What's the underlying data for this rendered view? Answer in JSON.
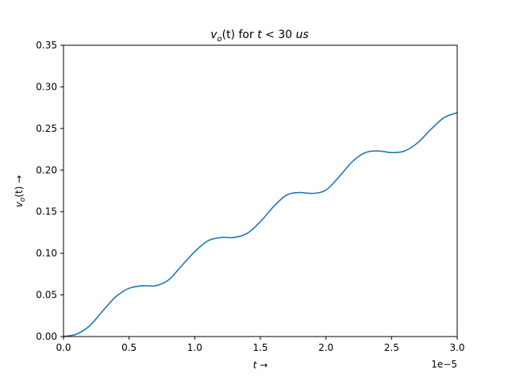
{
  "chart_data": {
    "type": "line",
    "title": "v_o(t) for t < 30 us",
    "title_parts": {
      "var": "v",
      "sub": "o",
      "arg": "(t)",
      "mid": " for ",
      "t": "t",
      "lt": " < 30 ",
      "unit": "us"
    },
    "xlabel": "t →",
    "xlabel_parts": {
      "var": "t",
      "arrow": " →"
    },
    "ylabel": "v_o(t) →",
    "ylabel_parts": {
      "var": "v",
      "sub": "o",
      "arg": "(t)",
      "arrow": " →"
    },
    "x_offset_text": "1e−5",
    "xlim": [
      0.0,
      3.0
    ],
    "ylim": [
      0.0,
      0.35
    ],
    "xticks": [
      "0.0",
      "0.5",
      "1.0",
      "1.5",
      "2.0",
      "2.5",
      "3.0"
    ],
    "yticks": [
      "0.00",
      "0.05",
      "0.10",
      "0.15",
      "0.20",
      "0.25",
      "0.30",
      "0.35"
    ],
    "grid": false,
    "colors": {
      "series": "#1f77b4",
      "axes": "#000000",
      "background": "#ffffff"
    },
    "series": [
      {
        "x": [
          0.0,
          0.1,
          0.2,
          0.3,
          0.4,
          0.5,
          0.6,
          0.7,
          0.8,
          0.9,
          1.0,
          1.1,
          1.2,
          1.3,
          1.4,
          1.5,
          1.6,
          1.7,
          1.8,
          1.9,
          2.0,
          2.1,
          2.2,
          2.3,
          2.4,
          2.5,
          2.6,
          2.7,
          2.8,
          2.9,
          3.0
        ],
        "y": [
          0.0,
          0.003,
          0.013,
          0.031,
          0.048,
          0.058,
          0.061,
          0.061,
          0.068,
          0.085,
          0.102,
          0.115,
          0.119,
          0.119,
          0.124,
          0.138,
          0.156,
          0.17,
          0.173,
          0.172,
          0.176,
          0.192,
          0.21,
          0.221,
          0.223,
          0.221,
          0.223,
          0.233,
          0.249,
          0.263,
          0.269
        ]
      }
    ]
  }
}
